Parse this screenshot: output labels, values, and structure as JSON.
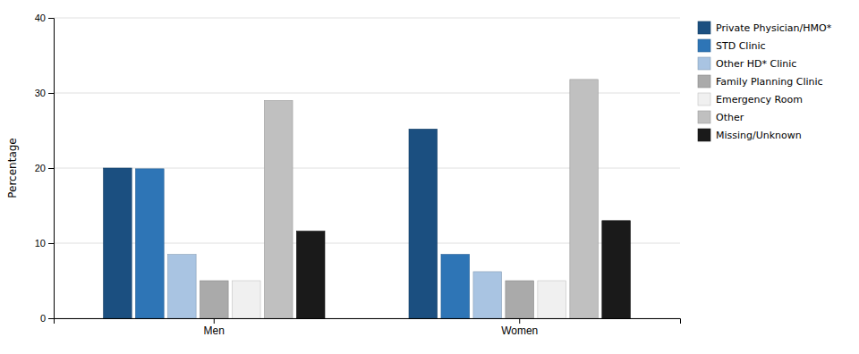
{
  "chart_data": {
    "type": "bar",
    "categories": [
      "Men",
      "Women"
    ],
    "series": [
      {
        "name": "Private Physician/HMO*",
        "color": "#1b4f80",
        "values": [
          20.0,
          25.2
        ]
      },
      {
        "name": "STD Clinic",
        "color": "#2e75b6",
        "values": [
          19.9,
          8.5
        ]
      },
      {
        "name": "Other HD* Clinic",
        "color": "#a9c4e2",
        "values": [
          8.5,
          6.2
        ]
      },
      {
        "name": "Family Planning Clinic",
        "color": "#aaaaaa",
        "values": [
          5.0,
          5.0
        ]
      },
      {
        "name": "Emergency Room",
        "color": "#f0f0f0",
        "values": [
          5.0,
          5.0
        ]
      },
      {
        "name": "Other",
        "color": "#c0c0c0",
        "values": [
          29.0,
          31.8
        ]
      },
      {
        "name": "Missing/Unknown",
        "color": "#1a1a1a",
        "values": [
          11.6,
          13.0
        ]
      }
    ],
    "ylabel": "Percentage",
    "ylim": [
      0,
      40
    ],
    "yticks": [
      0,
      10,
      20,
      30,
      40
    ],
    "grid": true,
    "legend": "right"
  }
}
